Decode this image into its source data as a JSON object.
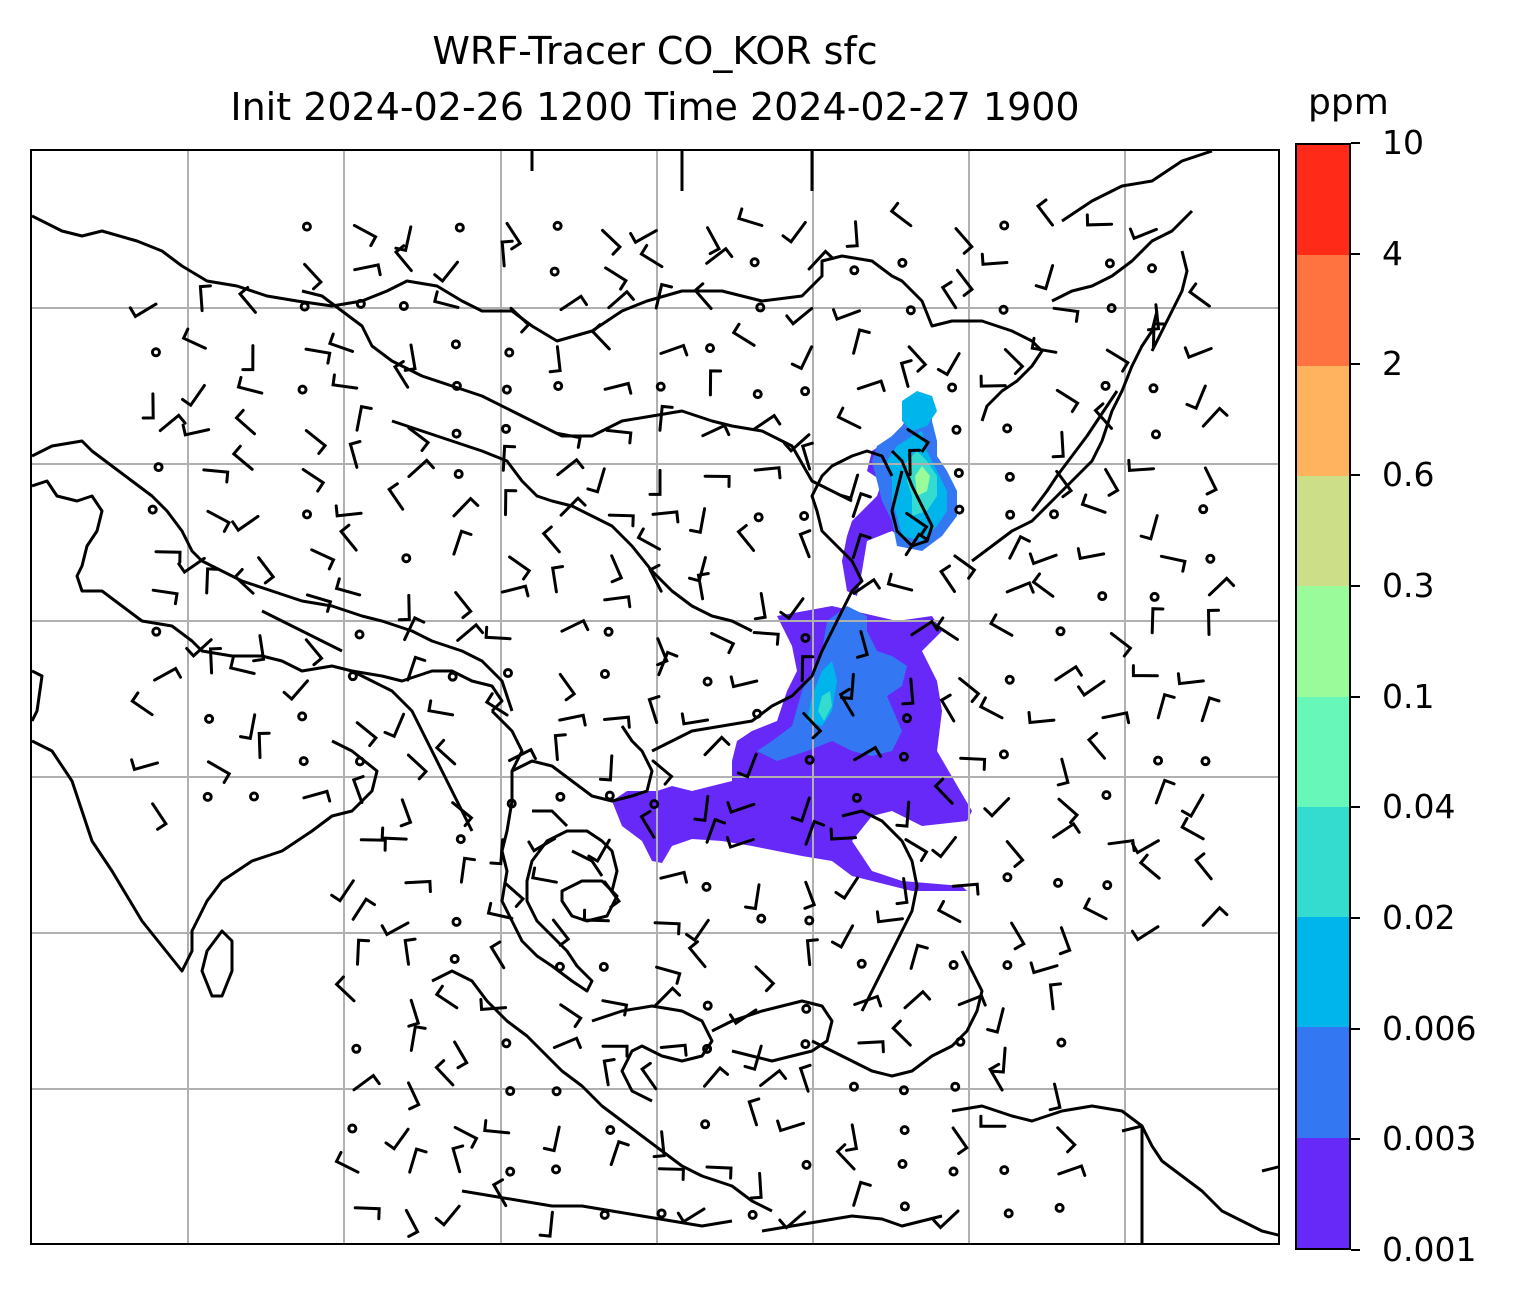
{
  "title": {
    "line1": "WRF-Tracer CO_KOR sfc",
    "line2": "Init 2024-02-26 1200 Time 2024-02-27 1900"
  },
  "colorbar": {
    "unit": "ppm",
    "levels": [
      "0.001",
      "0.003",
      "0.006",
      "0.02",
      "0.04",
      "0.1",
      "0.3",
      "0.6",
      "2",
      "4",
      "10"
    ],
    "colors": [
      "#6629f7",
      "#3377f2",
      "#00b4ec",
      "#33dccf",
      "#66f7b9",
      "#99fb99",
      "#ccdf88",
      "#ffb35f",
      "#ff7340",
      "#ff2a18"
    ]
  },
  "map": {
    "concentration_field": "CO_KOR surface tracer",
    "plume_colors": {
      "low": "#6629f7",
      "mid": "#3377f2",
      "higher": "#00b4ec",
      "core": "#33dccf",
      "peak": "#99fb99"
    },
    "coastline_color": "#000000",
    "gridline_color": "#b0b0b0",
    "wind_barb_color": "#000000"
  }
}
